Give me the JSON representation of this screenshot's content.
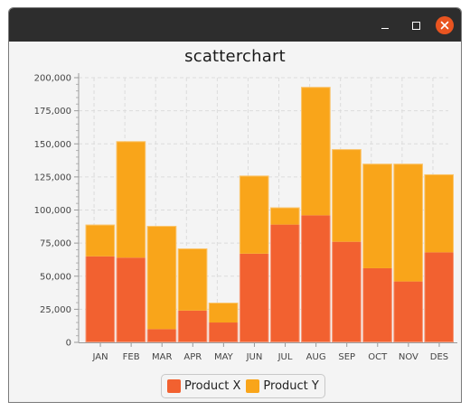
{
  "window": {
    "controls": {
      "minimize_icon": "minimize-icon",
      "maximize_icon": "maximize-icon",
      "close_icon": "close-icon"
    }
  },
  "colors": {
    "product_x": "#f26130",
    "product_y": "#f9a51a",
    "close": "#e95420",
    "grid": "#dcdcdc"
  },
  "chart_data": {
    "type": "bar",
    "stacked": true,
    "title": "scatterchart",
    "xlabel": "",
    "ylabel": "",
    "categories": [
      "JAN",
      "FEB",
      "MAR",
      "APR",
      "MAY",
      "JUN",
      "JUL",
      "AUG",
      "SEP",
      "OCT",
      "NOV",
      "DES"
    ],
    "series": [
      {
        "name": "Product X",
        "values": [
          65000,
          64000,
          10000,
          24000,
          15000,
          67000,
          89000,
          96000,
          76000,
          56000,
          46000,
          68000
        ]
      },
      {
        "name": "Product Y",
        "values": [
          24000,
          88000,
          78000,
          47000,
          15000,
          59000,
          13000,
          97000,
          70000,
          79000,
          89000,
          59000
        ]
      }
    ],
    "ylim": [
      0,
      200000
    ],
    "yticks": [
      "0",
      "25,000",
      "50,000",
      "75,000",
      "100,000",
      "125,000",
      "150,000",
      "175,000",
      "200,000"
    ],
    "grid": true,
    "legend_position": "bottom"
  }
}
